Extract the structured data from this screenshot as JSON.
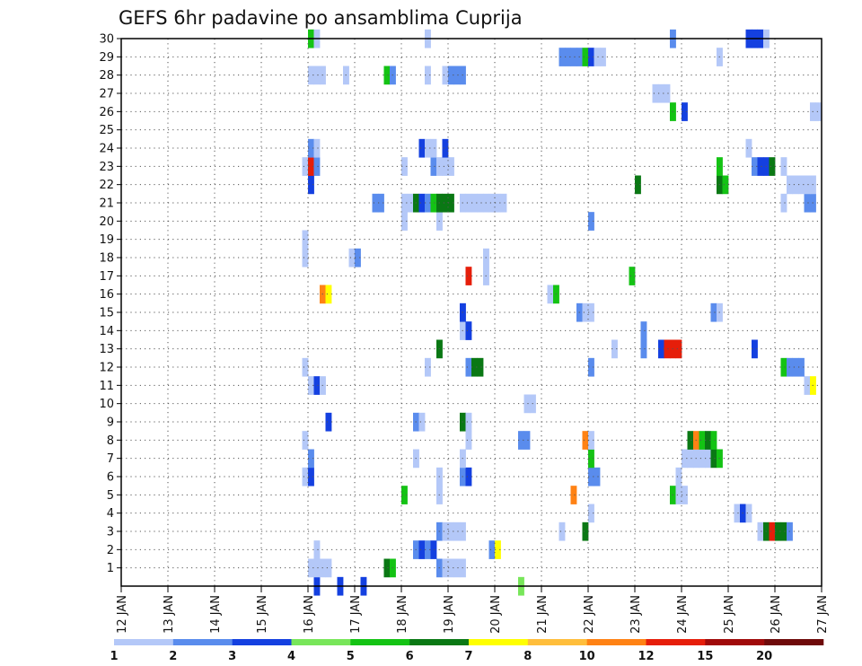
{
  "chart_data": {
    "type": "heatmap",
    "title": "GEFS 6hr padavine po ansamblima Cuprija",
    "x": [
      "12 JAN",
      "13 JAN",
      "14 JAN",
      "15 JAN",
      "16 JAN",
      "17 JAN",
      "18 JAN",
      "19 JAN",
      "20 JAN",
      "21 JAN",
      "22 JAN",
      "23 JAN",
      "24 JAN",
      "25 JAN",
      "26 JAN",
      "27 JAN"
    ],
    "xlim": [
      0,
      60
    ],
    "y_ticks": [
      "1",
      "2",
      "3",
      "4",
      "5",
      "6",
      "7",
      "8",
      "9",
      "10",
      "11",
      "12",
      "13",
      "14",
      "15",
      "16",
      "17",
      "18",
      "19",
      "20",
      "21",
      "22",
      "23",
      "24",
      "25",
      "26",
      "27",
      "28",
      "29",
      "30"
    ],
    "ylim": [
      0,
      30
    ],
    "grid": true,
    "legend": {
      "placement": "bottom",
      "labels": [
        "1",
        "2",
        "3",
        "4",
        "5",
        "6",
        "7",
        "8",
        "10",
        "12",
        "15",
        "20"
      ],
      "colors": [
        "#b4c8f8",
        "#5a8ced",
        "#1440e0",
        "#78e65a",
        "#14c314",
        "#0a7814",
        "#ffff00",
        "#ffbe3c",
        "#ff8214",
        "#e61e0a",
        "#a00a0a",
        "#6e0a0a"
      ]
    },
    "cells": [
      [
        16.5,
        0,
        3
      ],
      [
        18.5,
        0,
        3
      ],
      [
        20.5,
        0,
        3
      ],
      [
        34.0,
        0,
        4
      ],
      [
        16.0,
        1,
        1
      ],
      [
        16.5,
        1,
        1
      ],
      [
        17.0,
        1,
        1
      ],
      [
        17.5,
        1,
        1
      ],
      [
        22.5,
        1,
        6
      ],
      [
        23.0,
        1,
        5
      ],
      [
        27.0,
        1,
        2
      ],
      [
        27.5,
        1,
        1
      ],
      [
        28.0,
        1,
        1
      ],
      [
        28.5,
        1,
        1
      ],
      [
        29.0,
        1,
        1
      ],
      [
        16.5,
        2,
        1
      ],
      [
        25.0,
        2,
        2
      ],
      [
        25.5,
        2,
        3
      ],
      [
        26.0,
        2,
        2
      ],
      [
        26.5,
        2,
        3
      ],
      [
        31.5,
        2,
        2
      ],
      [
        32.0,
        2,
        7
      ],
      [
        27.0,
        3,
        2
      ],
      [
        27.5,
        3,
        1
      ],
      [
        28.0,
        3,
        1
      ],
      [
        28.5,
        3,
        1
      ],
      [
        29.0,
        3,
        1
      ],
      [
        37.5,
        3,
        1
      ],
      [
        39.5,
        3,
        6
      ],
      [
        54.5,
        3,
        1
      ],
      [
        55.0,
        3,
        6
      ],
      [
        55.5,
        3,
        10
      ],
      [
        56.0,
        3,
        6
      ],
      [
        56.5,
        3,
        6
      ],
      [
        57.0,
        3,
        2
      ],
      [
        40.0,
        4,
        1
      ],
      [
        52.5,
        4,
        1
      ],
      [
        53.0,
        4,
        3
      ],
      [
        53.5,
        4,
        1
      ],
      [
        24.0,
        5,
        5
      ],
      [
        27.0,
        5,
        1
      ],
      [
        38.5,
        5,
        9
      ],
      [
        47.0,
        5,
        5
      ],
      [
        47.5,
        5,
        1
      ],
      [
        48.0,
        5,
        1
      ],
      [
        15.5,
        6,
        1
      ],
      [
        16.0,
        6,
        3
      ],
      [
        27.0,
        6,
        1
      ],
      [
        29.0,
        6,
        2
      ],
      [
        29.5,
        6,
        3
      ],
      [
        40.0,
        6,
        2
      ],
      [
        40.5,
        6,
        2
      ],
      [
        47.5,
        6,
        1
      ],
      [
        16.0,
        7,
        2
      ],
      [
        25.0,
        7,
        1
      ],
      [
        29.0,
        7,
        1
      ],
      [
        40.0,
        7,
        5
      ],
      [
        48.0,
        7,
        1
      ],
      [
        48.5,
        7,
        1
      ],
      [
        49.0,
        7,
        1
      ],
      [
        49.5,
        7,
        1
      ],
      [
        50.0,
        7,
        1
      ],
      [
        50.5,
        7,
        6
      ],
      [
        51.0,
        7,
        5
      ],
      [
        15.5,
        8,
        1
      ],
      [
        29.5,
        8,
        1
      ],
      [
        34.0,
        8,
        2
      ],
      [
        34.5,
        8,
        2
      ],
      [
        39.5,
        8,
        9
      ],
      [
        40.0,
        8,
        1
      ],
      [
        48.5,
        8,
        6
      ],
      [
        49.0,
        8,
        9
      ],
      [
        49.5,
        8,
        5
      ],
      [
        50.0,
        8,
        6
      ],
      [
        50.5,
        8,
        5
      ],
      [
        17.5,
        9,
        3
      ],
      [
        25.0,
        9,
        2
      ],
      [
        25.5,
        9,
        1
      ],
      [
        29.0,
        9,
        6
      ],
      [
        29.5,
        9,
        1
      ],
      [
        34.5,
        10,
        1
      ],
      [
        35.0,
        10,
        1
      ],
      [
        16.0,
        11,
        1
      ],
      [
        16.5,
        11,
        3
      ],
      [
        17.0,
        11,
        1
      ],
      [
        58.5,
        11,
        1
      ],
      [
        59.0,
        11,
        7
      ],
      [
        15.5,
        12,
        1
      ],
      [
        26.0,
        12,
        1
      ],
      [
        29.5,
        12,
        2
      ],
      [
        30.0,
        12,
        6
      ],
      [
        30.5,
        12,
        6
      ],
      [
        40.0,
        12,
        2
      ],
      [
        56.5,
        12,
        5
      ],
      [
        57.0,
        12,
        2
      ],
      [
        57.5,
        12,
        2
      ],
      [
        58.0,
        12,
        2
      ],
      [
        27.0,
        13,
        6
      ],
      [
        42.0,
        13,
        1
      ],
      [
        44.5,
        13,
        2
      ],
      [
        46.0,
        13,
        3
      ],
      [
        46.5,
        13,
        10
      ],
      [
        47.0,
        13,
        10
      ],
      [
        47.5,
        13,
        10
      ],
      [
        54.0,
        13,
        3
      ],
      [
        29.0,
        14,
        1
      ],
      [
        29.5,
        14,
        3
      ],
      [
        44.5,
        14,
        2
      ],
      [
        29.0,
        15,
        3
      ],
      [
        39.0,
        15,
        2
      ],
      [
        39.5,
        15,
        1
      ],
      [
        40.0,
        15,
        1
      ],
      [
        50.5,
        15,
        2
      ],
      [
        51.0,
        15,
        1
      ],
      [
        17.0,
        16,
        9
      ],
      [
        17.5,
        16,
        7
      ],
      [
        36.5,
        16,
        1
      ],
      [
        37.0,
        16,
        5
      ],
      [
        29.5,
        17,
        10
      ],
      [
        31.0,
        17,
        1
      ],
      [
        43.5,
        17,
        5
      ],
      [
        15.5,
        18,
        1
      ],
      [
        19.5,
        18,
        1
      ],
      [
        20.0,
        18,
        2
      ],
      [
        31.0,
        18,
        1
      ],
      [
        15.5,
        19,
        1
      ],
      [
        24.0,
        20,
        1
      ],
      [
        27.0,
        20,
        1
      ],
      [
        40.0,
        20,
        2
      ],
      [
        21.5,
        21,
        2
      ],
      [
        22.0,
        21,
        2
      ],
      [
        24.0,
        21,
        1
      ],
      [
        24.5,
        21,
        1
      ],
      [
        25.0,
        21,
        6
      ],
      [
        25.5,
        21,
        3
      ],
      [
        26.0,
        21,
        2
      ],
      [
        26.5,
        21,
        5
      ],
      [
        27.0,
        21,
        6
      ],
      [
        27.5,
        21,
        6
      ],
      [
        28.0,
        21,
        6
      ],
      [
        29.0,
        21,
        1
      ],
      [
        29.5,
        21,
        1
      ],
      [
        30.0,
        21,
        1
      ],
      [
        30.5,
        21,
        1
      ],
      [
        31.0,
        21,
        1
      ],
      [
        31.5,
        21,
        1
      ],
      [
        32.0,
        21,
        1
      ],
      [
        32.5,
        21,
        1
      ],
      [
        56.5,
        21,
        1
      ],
      [
        58.5,
        21,
        2
      ],
      [
        59.0,
        21,
        2
      ],
      [
        16.0,
        22,
        3
      ],
      [
        44.0,
        22,
        6
      ],
      [
        51.0,
        22,
        6
      ],
      [
        51.5,
        22,
        5
      ],
      [
        57.0,
        22,
        1
      ],
      [
        57.5,
        22,
        1
      ],
      [
        58.0,
        22,
        1
      ],
      [
        58.5,
        22,
        1
      ],
      [
        59.0,
        22,
        1
      ],
      [
        15.5,
        23,
        1
      ],
      [
        16.0,
        23,
        10
      ],
      [
        16.5,
        23,
        2
      ],
      [
        24.0,
        23,
        1
      ],
      [
        26.5,
        23,
        2
      ],
      [
        27.0,
        23,
        1
      ],
      [
        27.5,
        23,
        1
      ],
      [
        28.0,
        23,
        1
      ],
      [
        51.0,
        23,
        5
      ],
      [
        54.0,
        23,
        2
      ],
      [
        54.5,
        23,
        3
      ],
      [
        55.0,
        23,
        3
      ],
      [
        55.5,
        23,
        6
      ],
      [
        56.5,
        23,
        1
      ],
      [
        16.0,
        24,
        2
      ],
      [
        16.5,
        24,
        1
      ],
      [
        25.5,
        24,
        3
      ],
      [
        26.0,
        24,
        1
      ],
      [
        26.5,
        24,
        1
      ],
      [
        27.5,
        24,
        3
      ],
      [
        53.5,
        24,
        1
      ],
      [
        47.0,
        26,
        5
      ],
      [
        48.0,
        26,
        3
      ],
      [
        59.0,
        26,
        1
      ],
      [
        59.5,
        26,
        1
      ],
      [
        45.5,
        27,
        1
      ],
      [
        46.0,
        27,
        1
      ],
      [
        46.5,
        27,
        1
      ],
      [
        16.0,
        28,
        1
      ],
      [
        16.5,
        28,
        1
      ],
      [
        17.0,
        28,
        1
      ],
      [
        19.0,
        28,
        1
      ],
      [
        22.5,
        28,
        5
      ],
      [
        23.0,
        28,
        2
      ],
      [
        26.0,
        28,
        1
      ],
      [
        27.5,
        28,
        1
      ],
      [
        28.0,
        28,
        2
      ],
      [
        28.5,
        28,
        2
      ],
      [
        29.0,
        28,
        2
      ],
      [
        37.5,
        29,
        2
      ],
      [
        38.0,
        29,
        2
      ],
      [
        38.5,
        29,
        2
      ],
      [
        39.0,
        29,
        2
      ],
      [
        39.5,
        29,
        5
      ],
      [
        40.0,
        29,
        3
      ],
      [
        40.5,
        29,
        1
      ],
      [
        41.0,
        29,
        1
      ],
      [
        51.0,
        29,
        1
      ],
      [
        16.0,
        30,
        5
      ],
      [
        16.5,
        30,
        1
      ],
      [
        26.0,
        30,
        1
      ],
      [
        47.0,
        30,
        2
      ],
      [
        53.5,
        30,
        3
      ],
      [
        54.0,
        30,
        3
      ],
      [
        54.5,
        30,
        3
      ],
      [
        55.0,
        30,
        1
      ]
    ]
  }
}
